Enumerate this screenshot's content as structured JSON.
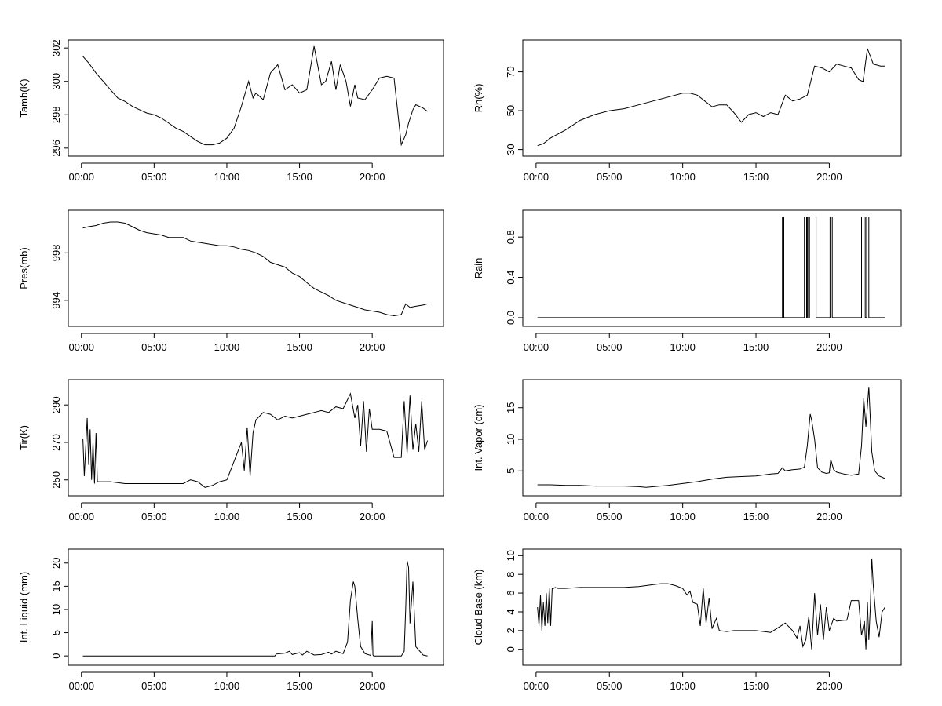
{
  "chart_data": [
    {
      "type": "line",
      "ylabel": "Tamb(K)",
      "xlim": [
        0,
        24
      ],
      "ylim": [
        295.8,
        302.2
      ],
      "yticks": [
        296,
        298,
        300,
        302
      ],
      "xticks": [
        "00:00",
        "05:00",
        "10:00",
        "15:00",
        "20:00"
      ],
      "x": [
        0.1,
        0.5,
        1.0,
        1.5,
        2.0,
        2.5,
        3.0,
        3.5,
        4.0,
        4.5,
        5.0,
        5.5,
        6.0,
        6.5,
        7.0,
        7.5,
        8.0,
        8.5,
        9.0,
        9.5,
        10.0,
        10.5,
        11.0,
        11.5,
        11.8,
        12.0,
        12.5,
        13.0,
        13.5,
        14.0,
        14.5,
        15.0,
        15.5,
        16.0,
        16.5,
        16.8,
        17.2,
        17.5,
        17.8,
        18.2,
        18.5,
        18.8,
        19.0,
        19.5,
        20.0,
        20.5,
        21.0,
        21.5,
        22.0,
        22.3,
        22.5,
        22.8,
        23.0,
        23.5,
        23.8
      ],
      "y": [
        301.5,
        301.1,
        300.5,
        300.0,
        299.5,
        299.0,
        298.8,
        298.5,
        298.3,
        298.1,
        298.0,
        297.8,
        297.5,
        297.2,
        297.0,
        296.7,
        296.4,
        296.2,
        296.2,
        296.3,
        296.6,
        297.2,
        298.5,
        300.0,
        299.0,
        299.3,
        298.9,
        300.5,
        301.0,
        299.5,
        299.8,
        299.3,
        299.5,
        302.1,
        299.8,
        300.0,
        301.2,
        299.5,
        301.0,
        300.0,
        298.5,
        299.8,
        299.0,
        298.9,
        299.5,
        300.2,
        300.3,
        300.2,
        296.2,
        296.8,
        297.5,
        298.3,
        298.6,
        298.4,
        298.2
      ]
    },
    {
      "type": "line",
      "ylabel": "Rh(%)",
      "xlim": [
        0,
        24
      ],
      "ylim": [
        29,
        84
      ],
      "yticks": [
        30,
        50,
        70
      ],
      "xticks": [
        "00:00",
        "05:00",
        "10:00",
        "15:00",
        "20:00"
      ],
      "x": [
        0.1,
        0.5,
        1.0,
        2.0,
        3.0,
        4.0,
        5.0,
        6.0,
        7.0,
        8.0,
        9.0,
        10.0,
        10.5,
        11.0,
        11.5,
        12.0,
        12.5,
        13.0,
        13.5,
        14.0,
        14.5,
        15.0,
        15.5,
        16.0,
        16.5,
        17.0,
        17.5,
        18.0,
        18.5,
        19.0,
        19.5,
        20.0,
        20.5,
        21.0,
        21.5,
        22.0,
        22.3,
        22.6,
        23.0,
        23.5,
        23.8
      ],
      "y": [
        32,
        33,
        36,
        40,
        45,
        48,
        50,
        51,
        53,
        55,
        57,
        59,
        59,
        58,
        55,
        52,
        53,
        53,
        49,
        44,
        48,
        49,
        47,
        49,
        48,
        58,
        55,
        56,
        58,
        73,
        72,
        70,
        74,
        73,
        72,
        66,
        65,
        82,
        74,
        73,
        73
      ]
    },
    {
      "type": "line",
      "ylabel": "Pres(mb)",
      "xlim": [
        0,
        24
      ],
      "ylim": [
        992.2,
        1001.2
      ],
      "yticks": [
        994,
        998
      ],
      "xticks": [
        "00:00",
        "05:00",
        "10:00",
        "15:00",
        "20:00"
      ],
      "x": [
        0.1,
        0.5,
        1.0,
        1.5,
        2.0,
        2.5,
        3.0,
        3.5,
        4.0,
        4.5,
        5.0,
        5.5,
        6.0,
        6.5,
        7.0,
        7.5,
        8.0,
        8.5,
        9.0,
        9.5,
        10.0,
        10.5,
        11.0,
        11.5,
        12.0,
        12.5,
        13.0,
        13.5,
        14.0,
        14.5,
        15.0,
        15.5,
        16.0,
        16.5,
        17.0,
        17.5,
        18.0,
        18.5,
        19.0,
        19.5,
        20.0,
        20.5,
        21.0,
        21.5,
        22.0,
        22.3,
        22.6,
        23.0,
        23.5,
        23.8
      ],
      "y": [
        1000.1,
        1000.2,
        1000.3,
        1000.5,
        1000.6,
        1000.6,
        1000.5,
        1000.2,
        999.9,
        999.7,
        999.6,
        999.5,
        999.3,
        999.3,
        999.3,
        999.0,
        998.9,
        998.8,
        998.7,
        998.6,
        998.6,
        998.5,
        998.3,
        998.2,
        998.0,
        997.7,
        997.2,
        997.0,
        996.8,
        996.3,
        996.0,
        995.5,
        995.0,
        994.7,
        994.4,
        994.0,
        993.8,
        993.6,
        993.4,
        993.2,
        993.1,
        993.0,
        992.8,
        992.7,
        992.8,
        993.7,
        993.4,
        993.5,
        993.6,
        993.7
      ]
    },
    {
      "type": "line",
      "ylabel": "Rain",
      "xlim": [
        0,
        24
      ],
      "ylim": [
        -0.04,
        1.02
      ],
      "yticks": [
        0.0,
        0.4,
        0.8
      ],
      "xticks": [
        "00:00",
        "05:00",
        "10:00",
        "15:00",
        "20:00"
      ],
      "x": [
        0.1,
        16.8,
        16.8,
        16.9,
        16.9,
        18.3,
        18.3,
        18.45,
        18.45,
        18.5,
        18.5,
        18.58,
        18.58,
        18.65,
        18.65,
        19.1,
        19.1,
        20.05,
        20.05,
        20.2,
        20.2,
        22.2,
        22.2,
        22.45,
        22.45,
        22.55,
        22.55,
        22.7,
        22.7,
        23.8
      ],
      "y": [
        0,
        0,
        1,
        1,
        0,
        0,
        1,
        1,
        0,
        0,
        1,
        1,
        0,
        0,
        1,
        1,
        0,
        0,
        1,
        1,
        0,
        0,
        1,
        1,
        0,
        0,
        1,
        1,
        0,
        0
      ]
    },
    {
      "type": "line",
      "ylabel": "Tir(K)",
      "xlim": [
        0,
        24
      ],
      "ylim": [
        244,
        301
      ],
      "yticks": [
        250,
        270,
        290
      ],
      "xticks": [
        "00:00",
        "05:00",
        "10:00",
        "15:00",
        "20:00"
      ],
      "x": [
        0.1,
        0.2,
        0.4,
        0.5,
        0.6,
        0.7,
        0.8,
        0.9,
        1.0,
        1.1,
        1.2,
        1.3,
        1.5,
        2.0,
        3.0,
        4.0,
        5.0,
        6.0,
        7.0,
        7.5,
        8.0,
        8.5,
        9.0,
        9.5,
        10.0,
        10.5,
        11.0,
        11.2,
        11.4,
        11.6,
        11.8,
        12.0,
        12.5,
        13.0,
        13.5,
        14.0,
        14.5,
        15.0,
        15.5,
        16.0,
        16.5,
        17.0,
        17.5,
        18.0,
        18.5,
        18.8,
        19.0,
        19.2,
        19.4,
        19.6,
        19.8,
        20.0,
        20.5,
        21.0,
        21.5,
        22.0,
        22.2,
        22.4,
        22.6,
        22.8,
        23.0,
        23.2,
        23.4,
        23.6,
        23.8
      ],
      "y": [
        272,
        252,
        283,
        258,
        277,
        250,
        270,
        248,
        275,
        249,
        249,
        249,
        249,
        249,
        248,
        248,
        248,
        248,
        248,
        250,
        249,
        246,
        247,
        249,
        250,
        260,
        270,
        255,
        278,
        252,
        275,
        282,
        286,
        285,
        282,
        284,
        283,
        284,
        285,
        286,
        287,
        286,
        289,
        288,
        296,
        283,
        290,
        268,
        292,
        265,
        288,
        277,
        277,
        276,
        262,
        262,
        292,
        264,
        295,
        266,
        280,
        265,
        292,
        266,
        271
      ]
    },
    {
      "type": "line",
      "ylabel": "Int. Vapor (cm)",
      "xlim": [
        0,
        24
      ],
      "ylim": [
        1.8,
        18.7
      ],
      "yticks": [
        5,
        10,
        15
      ],
      "xticks": [
        "00:00",
        "05:00",
        "10:00",
        "15:00",
        "20:00"
      ],
      "x": [
        0.1,
        1.0,
        2.0,
        3.0,
        4.0,
        5.0,
        6.0,
        7.0,
        7.5,
        8.0,
        9.0,
        10.0,
        11.0,
        12.0,
        13.0,
        14.0,
        15.0,
        16.0,
        16.5,
        16.8,
        17.0,
        17.5,
        18.0,
        18.3,
        18.5,
        18.7,
        18.8,
        19.0,
        19.2,
        19.5,
        19.8,
        20.0,
        20.1,
        20.3,
        20.5,
        21.0,
        21.5,
        22.0,
        22.2,
        22.35,
        22.5,
        22.7,
        22.9,
        23.1,
        23.4,
        23.8
      ],
      "y": [
        2.8,
        2.8,
        2.7,
        2.7,
        2.6,
        2.6,
        2.6,
        2.5,
        2.4,
        2.5,
        2.7,
        3.0,
        3.3,
        3.7,
        4.0,
        4.1,
        4.2,
        4.5,
        4.6,
        5.5,
        5.0,
        5.2,
        5.3,
        5.6,
        9.0,
        14.0,
        13.0,
        10.0,
        5.5,
        4.8,
        4.6,
        4.7,
        6.8,
        5.2,
        4.8,
        4.5,
        4.3,
        4.5,
        9.0,
        16.5,
        12.0,
        18.3,
        8.0,
        5.0,
        4.2,
        3.8
      ]
    },
    {
      "type": "line",
      "ylabel": "Int. Liquid (mm)",
      "xlim": [
        0,
        24
      ],
      "ylim": [
        -1,
        22
      ],
      "yticks": [
        0,
        5,
        10,
        15,
        20
      ],
      "xticks": [
        "00:00",
        "05:00",
        "10:00",
        "15:00",
        "20:00"
      ],
      "x": [
        0.1,
        5.0,
        10.0,
        13.0,
        13.3,
        13.4,
        14.0,
        14.3,
        14.5,
        15.0,
        15.2,
        15.5,
        16.0,
        16.5,
        17.0,
        17.2,
        17.5,
        18.0,
        18.3,
        18.5,
        18.7,
        18.8,
        19.0,
        19.2,
        19.5,
        19.9,
        20.0,
        20.05,
        20.1,
        20.5,
        21.0,
        22.0,
        22.2,
        22.3,
        22.4,
        22.5,
        22.6,
        22.8,
        23.0,
        23.5,
        23.8
      ],
      "y": [
        0,
        0,
        0,
        0,
        0,
        0.4,
        0.6,
        1.0,
        0.3,
        0.7,
        0.2,
        1.0,
        0.2,
        0.3,
        0.8,
        0.4,
        1.0,
        0.5,
        3.0,
        12.0,
        16.0,
        15.0,
        8.0,
        2.0,
        0.5,
        0.1,
        7.5,
        0.2,
        0,
        0,
        0,
        0,
        1.0,
        10.0,
        20.5,
        19.0,
        7.0,
        16.0,
        2.0,
        0.2,
        0
      ]
    },
    {
      "type": "line",
      "ylabel": "Cloud Base (km)",
      "xlim": [
        0,
        24
      ],
      "ylim": [
        -1.2,
        10.2
      ],
      "yticks": [
        0,
        2,
        4,
        6,
        8,
        10
      ],
      "xticks": [
        "00:00",
        "05:00",
        "10:00",
        "15:00",
        "20:00"
      ],
      "x": [
        0.1,
        0.2,
        0.3,
        0.4,
        0.5,
        0.6,
        0.7,
        0.8,
        0.9,
        1.0,
        1.1,
        1.2,
        1.3,
        1.5,
        2.0,
        3.0,
        4.0,
        5.0,
        6.0,
        7.0,
        7.5,
        8.0,
        8.5,
        9.0,
        9.5,
        10.0,
        10.3,
        10.5,
        10.7,
        11.0,
        11.2,
        11.4,
        11.6,
        11.8,
        12.0,
        12.3,
        12.5,
        13.0,
        13.5,
        14.0,
        15.0,
        16.0,
        16.5,
        17.0,
        17.5,
        17.8,
        18.0,
        18.2,
        18.4,
        18.6,
        18.8,
        19.0,
        19.2,
        19.4,
        19.6,
        19.8,
        20.0,
        20.3,
        20.5,
        21.0,
        21.2,
        21.5,
        22.0,
        22.2,
        22.4,
        22.5,
        22.6,
        22.7,
        22.8,
        22.9,
        23.0,
        23.2,
        23.4,
        23.6,
        23.8
      ],
      "y": [
        4.5,
        2.5,
        5.8,
        2.0,
        5.0,
        2.5,
        6.0,
        2.8,
        6.6,
        2.5,
        6.5,
        6.5,
        6.6,
        6.5,
        6.5,
        6.6,
        6.6,
        6.6,
        6.6,
        6.7,
        6.8,
        6.9,
        7.0,
        7.0,
        6.8,
        6.5,
        5.8,
        6.2,
        5.0,
        4.8,
        2.5,
        6.5,
        2.8,
        5.5,
        2.2,
        3.3,
        2.0,
        1.9,
        2.0,
        2.0,
        2.0,
        1.8,
        2.3,
        2.8,
        2.0,
        1.2,
        2.5,
        0.3,
        1.0,
        3.5,
        0.0,
        6.0,
        1.5,
        4.8,
        1.0,
        4.5,
        2.0,
        3.3,
        3.0,
        3.1,
        3.1,
        5.2,
        5.2,
        1.5,
        3.0,
        0.0,
        5.0,
        1.0,
        4.5,
        9.7,
        6.8,
        3.0,
        1.3,
        4.0,
        4.5
      ]
    }
  ]
}
